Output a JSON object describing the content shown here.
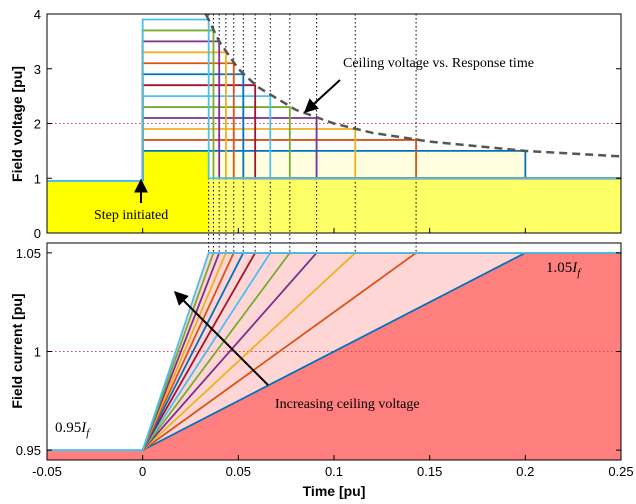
{
  "chart_data": [
    {
      "type": "line",
      "panel": "top",
      "ylabel": "Field voltage [pu]",
      "xlim": [
        -0.05,
        0.25
      ],
      "ylim": [
        0,
        4
      ],
      "yticks": [
        "0",
        "1",
        "2",
        "3",
        "4"
      ],
      "grid": "dotted-red",
      "base_level": 1.0,
      "prestep_level": 0.95,
      "step_time": 0,
      "series": [
        {
          "ceiling": 1.5,
          "response_time": 0.2,
          "color": "#0072BD"
        },
        {
          "ceiling": 1.7,
          "response_time": 0.1429,
          "color": "#D95319"
        },
        {
          "ceiling": 1.9,
          "response_time": 0.1111,
          "color": "#EDB120"
        },
        {
          "ceiling": 2.1,
          "response_time": 0.0909,
          "color": "#7E2F8E"
        },
        {
          "ceiling": 2.3,
          "response_time": 0.0769,
          "color": "#77AC30"
        },
        {
          "ceiling": 2.5,
          "response_time": 0.0667,
          "color": "#4DBEEE"
        },
        {
          "ceiling": 2.7,
          "response_time": 0.0588,
          "color": "#A2142F"
        },
        {
          "ceiling": 2.9,
          "response_time": 0.0526,
          "color": "#0072BD"
        },
        {
          "ceiling": 3.1,
          "response_time": 0.0476,
          "color": "#D95319"
        },
        {
          "ceiling": 3.3,
          "response_time": 0.0435,
          "color": "#EDB120"
        },
        {
          "ceiling": 3.5,
          "response_time": 0.04,
          "color": "#7E2F8E"
        },
        {
          "ceiling": 3.7,
          "response_time": 0.037,
          "color": "#77AC30"
        },
        {
          "ceiling": 3.9,
          "response_time": 0.0345,
          "color": "#4DBEEE"
        }
      ],
      "envelope_curve": {
        "x": [
          0.033,
          0.04,
          0.05,
          0.06,
          0.08,
          0.1,
          0.12,
          0.15,
          0.2,
          0.25
        ],
        "y": [
          4.0,
          3.5,
          3.0,
          2.67,
          2.25,
          2.0,
          1.83,
          1.67,
          1.5,
          1.4
        ]
      },
      "annotations": [
        {
          "text": "Ceiling voltage vs. Response time"
        },
        {
          "text": "Step initiated"
        }
      ]
    },
    {
      "type": "line",
      "panel": "bottom",
      "xlabel": "Time [pu]",
      "ylabel": "Field current [pu]",
      "xlim": [
        -0.05,
        0.25
      ],
      "ylim": [
        0.945,
        1.055
      ],
      "xticks": [
        "-0.05",
        "0",
        "0.05",
        "0.1",
        "0.15",
        "0.2",
        "0.25"
      ],
      "yticks": [
        "0.95",
        "1",
        "1.05"
      ],
      "grid": "dotted-red",
      "start_value": 0.95,
      "end_value": 1.05,
      "ramp_end_times": [
        0.2,
        0.1429,
        0.1111,
        0.0909,
        0.0769,
        0.0667,
        0.0588,
        0.0526,
        0.0476,
        0.0435,
        0.04,
        0.037,
        0.0345
      ],
      "annotations": [
        {
          "text": "Increasing ceiling voltage"
        }
      ],
      "label_low": {
        "coef": "0.95",
        "var": "I",
        "sub": "f"
      },
      "label_high": {
        "coef": "1.05",
        "var": "I",
        "sub": "f"
      }
    }
  ]
}
